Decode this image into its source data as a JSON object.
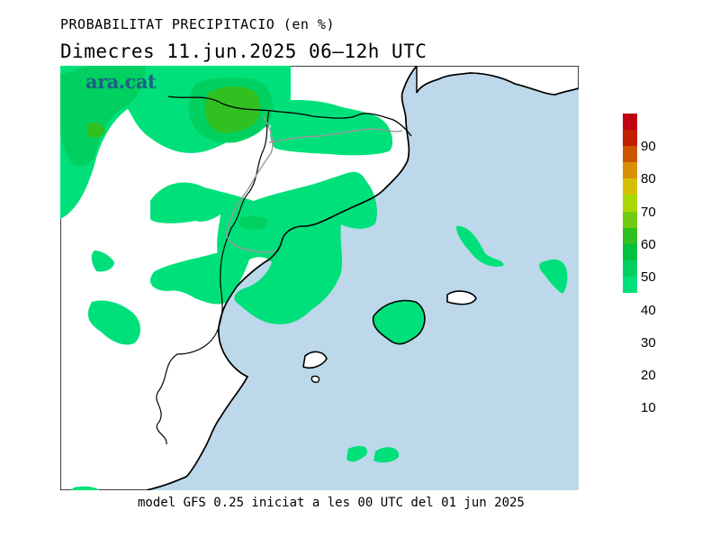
{
  "header": {
    "title": "PROBABILITAT PRECIPITACIO (en %)",
    "subtitle": "Dimecres  11.jun.2025 06–12h UTC"
  },
  "logo": {
    "text": "ara.cat"
  },
  "footer": {
    "model_text": "model GFS 0.25 iniciat a les 00 UTC del 01 jun 2025"
  },
  "legend": {
    "unit": "%",
    "colors": [
      "#00e07a",
      "#00d060",
      "#00c13f",
      "#30c020",
      "#70cc10",
      "#a8d800",
      "#d4c000",
      "#d89000",
      "#cc5500",
      "#c02000",
      "#c00010"
    ],
    "labels": [
      "10",
      "20",
      "30",
      "40",
      "50",
      "60",
      "70",
      "80",
      "90"
    ]
  },
  "map_colors": {
    "sea": "#bcd8ea",
    "land": "#ffffff",
    "prob_10": "#00e07a",
    "prob_20": "#00d060",
    "prob_30": "#30c020"
  }
}
